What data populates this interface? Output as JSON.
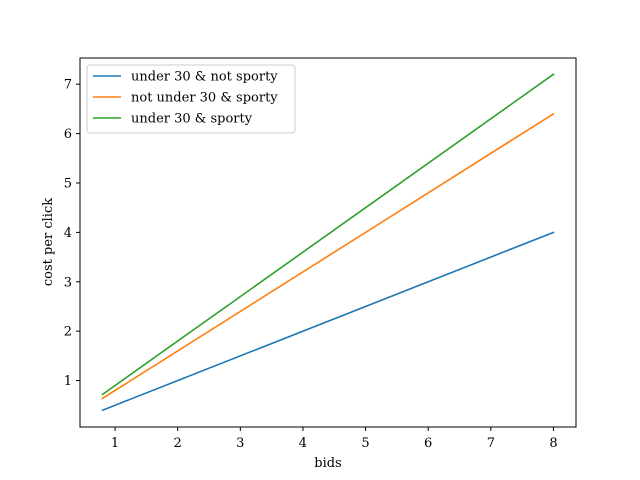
{
  "chart_data": {
    "type": "line",
    "xlabel": "bids",
    "ylabel": "cost per click",
    "xlim": [
      0.44,
      8.36
    ],
    "ylim": [
      0.06,
      7.53
    ],
    "xticks": [
      1,
      2,
      3,
      4,
      5,
      6,
      7,
      8
    ],
    "yticks": [
      1,
      2,
      3,
      4,
      5,
      6,
      7
    ],
    "grid": false,
    "legend_position": "top-left",
    "series": [
      {
        "name": "under 30 & not sporty",
        "color": "#1f77b4",
        "x": [
          0.8,
          8
        ],
        "y": [
          0.4,
          4.0
        ]
      },
      {
        "name": "not under 30 & sporty",
        "color": "#ff7f0e",
        "x": [
          0.8,
          8
        ],
        "y": [
          0.64,
          6.4
        ]
      },
      {
        "name": "under 30 & sporty",
        "color": "#2ca02c",
        "x": [
          0.8,
          8
        ],
        "y": [
          0.72,
          7.2
        ]
      }
    ]
  }
}
